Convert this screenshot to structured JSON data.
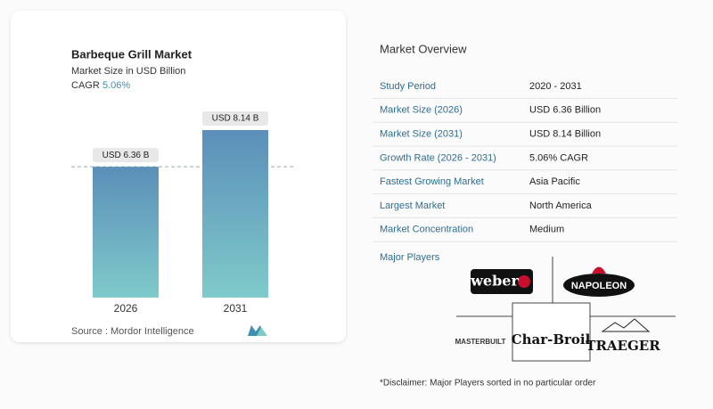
{
  "chart_data": {
    "type": "bar",
    "title": "Barbeque Grill Market",
    "subtitle": "Market Size in USD Billion",
    "cagr_label": "CAGR",
    "cagr_value": "5.06%",
    "categories": [
      "2026",
      "2031"
    ],
    "values": [
      6.36,
      8.14
    ],
    "value_labels": [
      "USD 6.36 B",
      "USD 8.14 B"
    ],
    "color": "#5b8fb9",
    "source": "Source :  Mordor Intelligence"
  },
  "overview": {
    "title": "Market Overview",
    "rows": [
      [
        "Study Period",
        "2020 - 2031"
      ],
      [
        "Market Size (2026)",
        "USD 6.36 Billion"
      ],
      [
        "Market Size (2031)",
        "USD 8.14 Billion"
      ],
      [
        "Growth Rate (2026 - 2031)",
        "5.06% CAGR"
      ],
      [
        "Fastest Growing Market",
        "Asia Pacific"
      ],
      [
        "Largest Market",
        "North America"
      ],
      [
        "Market Concentration",
        "Medium"
      ]
    ],
    "major_players_label": "Major Players",
    "players": [
      "weber",
      "NAPOLEON",
      "MASTERBUILT",
      "Char-Broil",
      "TRAEGER"
    ],
    "disclaimer": "*Disclaimer: Major Players sorted in no particular order"
  }
}
